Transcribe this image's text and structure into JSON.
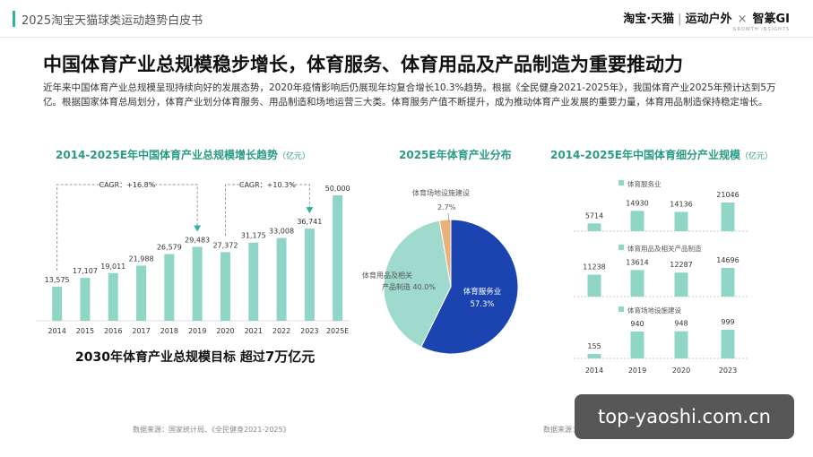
{
  "header": {
    "title": "2025淘宝天猫球类运动趋势白皮书",
    "brand": {
      "taobao_tmall": "淘宝·天猫",
      "sports": "运动户外",
      "times": "×",
      "partner": "智篆GI",
      "partner_sub": "GROWTH INSIGHTS"
    }
  },
  "headline": "中国体育产业总规模稳步增长，体育服务、体育用品及产品制造为重要推动力",
  "intro": "近年来中国体育产业总规模呈现持续向好的发展态势，2020年疫情影响后仍展现年均复合增长10.3%趋势。根据《全民健身2021-2025年》，我国体育产业2025年预计达到5万亿。根据国家体育总局划分，体育产业划分体育服务、用品制造和场地运营三大类。体育服务产值不断提升，成为推动体育产业发展的重要力量，体育用品制造保持稳定增长。",
  "target": {
    "prefix": "2030年体育产业总规模目标 超过",
    "emphasis": "7万亿元"
  },
  "sources": {
    "left": "数据来源：国家统计局、《全民健身2021-2025》",
    "right": "数据来源："
  },
  "watermark": "top-yaoshi.com.cn",
  "colors": {
    "teal": "#2fb39d",
    "teal_light": "#8fd6c7",
    "title_teal": "#2a9a86",
    "navy": "#1c44b0",
    "pale_teal": "#9fdacd",
    "orange": "#e8b27a"
  },
  "chart_data": [
    {
      "type": "bar",
      "title": "2014-2025E年中国体育产业总规模增长趋势",
      "unit": "（亿元）",
      "categories": [
        "2014",
        "2015",
        "2016",
        "2017",
        "2018",
        "2019",
        "2020",
        "2021",
        "2022",
        "2023",
        "2025E"
      ],
      "values": [
        13575,
        17107,
        19011,
        21988,
        26579,
        29483,
        27372,
        31175,
        33008,
        36741,
        50000
      ],
      "value_labels": [
        "13,575",
        "17,107",
        "19,011",
        "21,988",
        "26,579",
        "29,483",
        "27,372",
        "31,175",
        "33,008",
        "36,741",
        "50,000"
      ],
      "ylim": [
        0,
        50000
      ],
      "annotations": [
        {
          "text": "CAGR：+16.8%",
          "from": "2014",
          "to": "2019"
        },
        {
          "text": "CAGR：+10.3%",
          "from": "2020",
          "to": "2023"
        }
      ]
    },
    {
      "type": "pie",
      "title": "2025E年体育产业分布",
      "slices": [
        {
          "label": "体育服务业",
          "value": 57.3,
          "value_label": "57.3%"
        },
        {
          "label": "体育用品及相关产品制造",
          "value": 40.0,
          "value_label": "40.0%"
        },
        {
          "label": "体育场地设施建设",
          "value": 2.7,
          "value_label": "2.7%"
        }
      ]
    },
    {
      "type": "bar",
      "title": "2014-2025E年中国体育细分产业规模",
      "unit": "（亿元）",
      "categories": [
        "2014",
        "2019",
        "2020",
        "2023"
      ],
      "series": [
        {
          "name": "体育服务业",
          "values": [
            5714,
            14930,
            14136,
            21046
          ]
        },
        {
          "name": "体育用品及相关产品制造",
          "values": [
            11238,
            13614,
            12287,
            14696
          ]
        },
        {
          "name": "体育场地设施建设",
          "values": [
            155,
            940,
            948,
            999
          ]
        }
      ]
    }
  ]
}
